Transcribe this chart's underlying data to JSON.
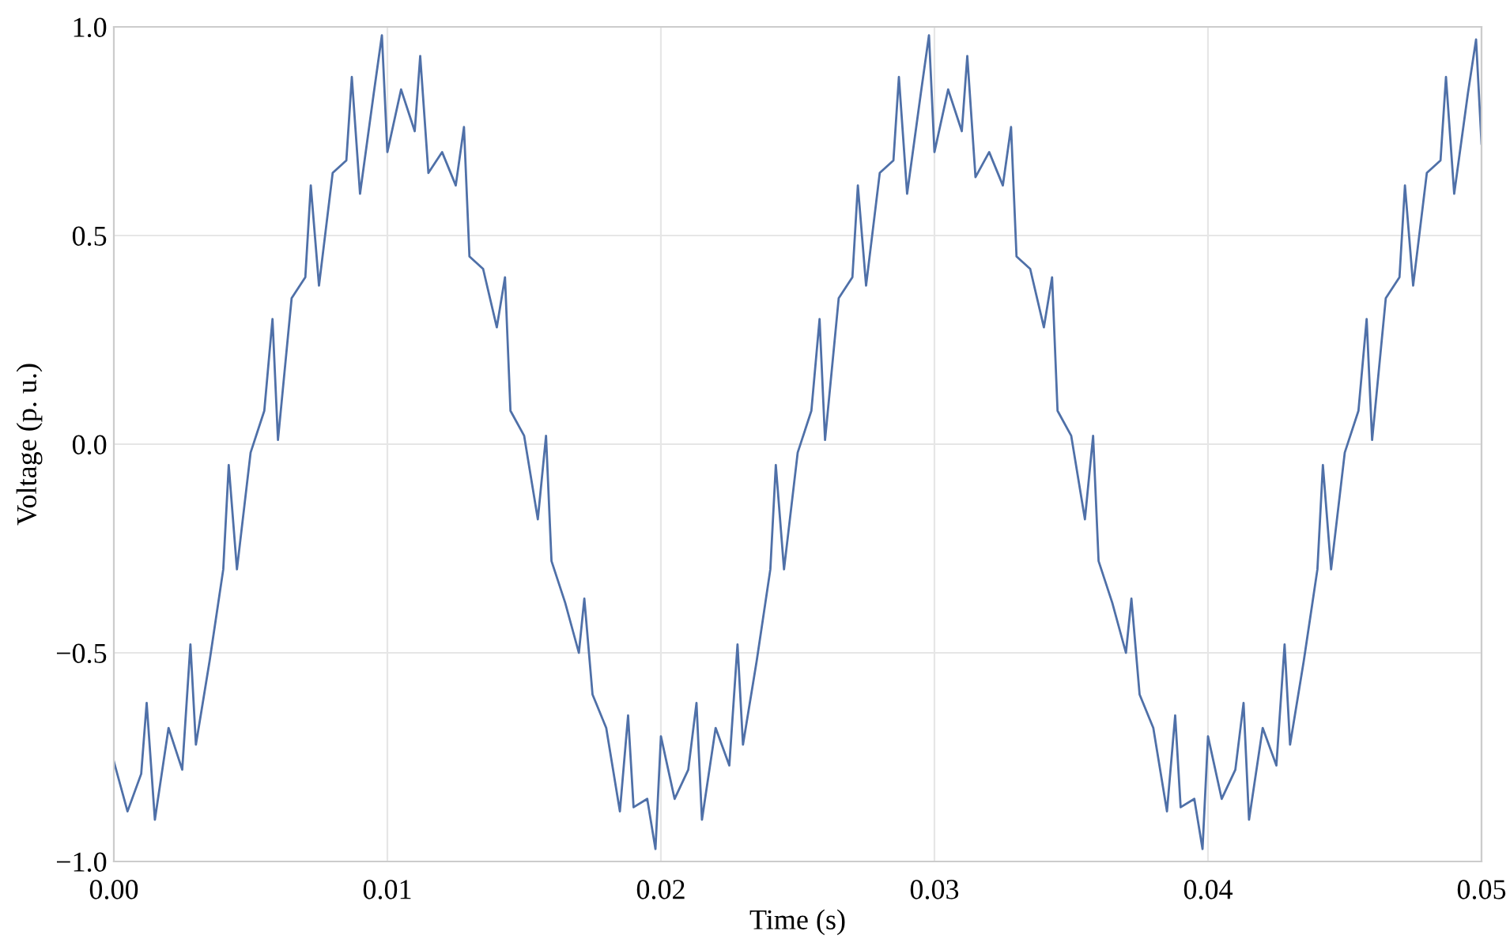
{
  "chart_data": {
    "type": "line",
    "xlabel": "Time (s)",
    "ylabel": "Voltage (p. u.)",
    "x": [
      0.0,
      0.0005,
      0.001,
      0.0012,
      0.0015,
      0.002,
      0.0025,
      0.0028,
      0.003,
      0.0035,
      0.004,
      0.0042,
      0.0045,
      0.005,
      0.0055,
      0.0058,
      0.006,
      0.0065,
      0.007,
      0.0072,
      0.0075,
      0.008,
      0.0085,
      0.0087,
      0.009,
      0.0095,
      0.0098,
      0.01,
      0.0105,
      0.011,
      0.0112,
      0.0115,
      0.012,
      0.0125,
      0.0128,
      0.013,
      0.0135,
      0.014,
      0.0143,
      0.0145,
      0.015,
      0.0155,
      0.0158,
      0.016,
      0.0165,
      0.017,
      0.0172,
      0.0175,
      0.018,
      0.0185,
      0.0188,
      0.019,
      0.0195,
      0.0198,
      0.02,
      0.0205,
      0.021,
      0.0213,
      0.0215,
      0.022,
      0.0225,
      0.0228,
      0.023,
      0.0235,
      0.024,
      0.0242,
      0.0245,
      0.025,
      0.0255,
      0.0258,
      0.026,
      0.0265,
      0.027,
      0.0272,
      0.0275,
      0.028,
      0.0285,
      0.0287,
      0.029,
      0.0295,
      0.0298,
      0.03,
      0.0305,
      0.031,
      0.0312,
      0.0315,
      0.032,
      0.0325,
      0.0328,
      0.033,
      0.0335,
      0.034,
      0.0343,
      0.0345,
      0.035,
      0.0355,
      0.0358,
      0.036,
      0.0365,
      0.037,
      0.0372,
      0.0375,
      0.038,
      0.0385,
      0.0388,
      0.039,
      0.0395,
      0.0398,
      0.04,
      0.0405,
      0.041,
      0.0413,
      0.0415,
      0.042,
      0.0425,
      0.0428,
      0.043,
      0.0435,
      0.044,
      0.0442,
      0.0445,
      0.045,
      0.0455,
      0.0458,
      0.046,
      0.0465,
      0.047,
      0.0472,
      0.0475,
      0.048,
      0.0485,
      0.0487,
      0.049,
      0.0495,
      0.0498,
      0.05
    ],
    "series": [
      {
        "color": "#4f70a8",
        "values": [
          -0.76,
          -0.88,
          -0.79,
          -0.62,
          -0.9,
          -0.68,
          -0.78,
          -0.48,
          -0.72,
          -0.52,
          -0.3,
          -0.05,
          -0.3,
          -0.02,
          0.08,
          0.3,
          0.01,
          0.35,
          0.4,
          0.62,
          0.38,
          0.65,
          0.68,
          0.88,
          0.6,
          0.84,
          0.98,
          0.7,
          0.85,
          0.75,
          0.93,
          0.65,
          0.7,
          0.62,
          0.76,
          0.45,
          0.42,
          0.28,
          0.4,
          0.08,
          0.02,
          -0.18,
          0.02,
          -0.28,
          -0.38,
          -0.5,
          -0.37,
          -0.6,
          -0.68,
          -0.88,
          -0.65,
          -0.87,
          -0.85,
          -0.97,
          -0.7,
          -0.85,
          -0.78,
          -0.62,
          -0.9,
          -0.68,
          -0.77,
          -0.48,
          -0.72,
          -0.52,
          -0.3,
          -0.05,
          -0.3,
          -0.02,
          0.08,
          0.3,
          0.01,
          0.35,
          0.4,
          0.62,
          0.38,
          0.65,
          0.68,
          0.88,
          0.6,
          0.84,
          0.98,
          0.7,
          0.85,
          0.75,
          0.93,
          0.64,
          0.7,
          0.62,
          0.76,
          0.45,
          0.42,
          0.28,
          0.4,
          0.08,
          0.02,
          -0.18,
          0.02,
          -0.28,
          -0.38,
          -0.5,
          -0.37,
          -0.6,
          -0.68,
          -0.88,
          -0.65,
          -0.87,
          -0.85,
          -0.97,
          -0.7,
          -0.85,
          -0.78,
          -0.62,
          -0.9,
          -0.68,
          -0.77,
          -0.48,
          -0.72,
          -0.52,
          -0.3,
          -0.05,
          -0.3,
          -0.02,
          0.08,
          0.3,
          0.01,
          0.35,
          0.4,
          0.62,
          0.38,
          0.65,
          0.68,
          0.88,
          0.6,
          0.84,
          0.97,
          0.72
        ]
      }
    ],
    "xlim": [
      0.0,
      0.05
    ],
    "ylim": [
      -1.0,
      1.0
    ],
    "xticks": [
      {
        "value": 0.0,
        "label": "0.00"
      },
      {
        "value": 0.01,
        "label": "0.01"
      },
      {
        "value": 0.02,
        "label": "0.02"
      },
      {
        "value": 0.03,
        "label": "0.03"
      },
      {
        "value": 0.04,
        "label": "0.04"
      },
      {
        "value": 0.05,
        "label": "0.05"
      }
    ],
    "yticks": [
      {
        "value": -1.0,
        "label": "−1.0"
      },
      {
        "value": -0.5,
        "label": "−0.5"
      },
      {
        "value": 0.0,
        "label": "0.0"
      },
      {
        "value": 0.5,
        "label": "0.5"
      },
      {
        "value": 1.0,
        "label": "1.0"
      }
    ],
    "grid": true,
    "marker": "none",
    "line_style": "solid"
  }
}
